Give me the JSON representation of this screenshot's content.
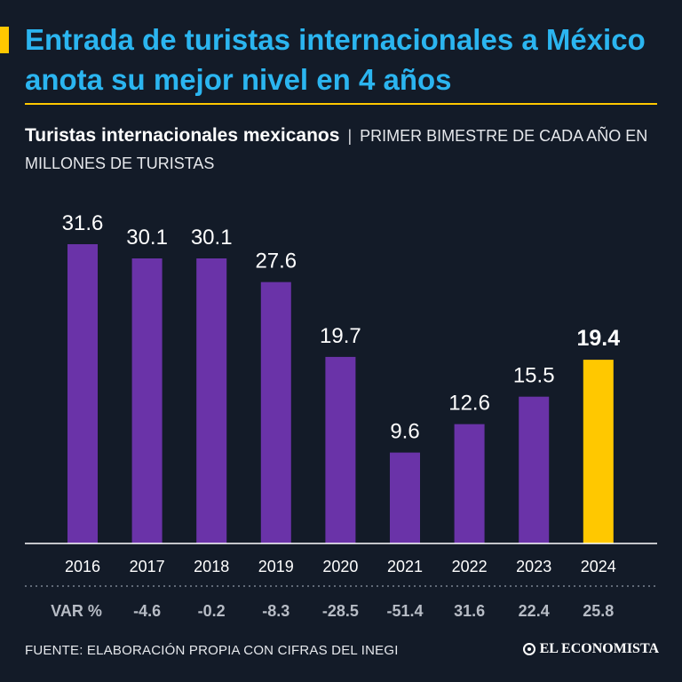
{
  "header": {
    "headline": "Entrada de turistas internacionales a México anota su mejor nivel en 4 años",
    "subtitle_strong": "Turistas internacionales mexicanos",
    "subtitle_separator": "|",
    "subtitle_rest": "PRIMER BIMESTRE DE CADA AÑO EN MILLONES DE TURISTAS"
  },
  "chart_data": {
    "type": "bar",
    "title": "Turistas internacionales mexicanos",
    "ylabel": "Millones de turistas",
    "categories": [
      "2016",
      "2017",
      "2018",
      "2019",
      "2020",
      "2021",
      "2022",
      "2023",
      "2024"
    ],
    "values": [
      31.6,
      30.1,
      30.1,
      27.6,
      19.7,
      9.6,
      12.6,
      15.5,
      19.4
    ],
    "value_labels": [
      "31.6",
      "30.1",
      "30.1",
      "27.6",
      "19.7",
      "9.6",
      "12.6",
      "15.5",
      "19.4"
    ],
    "ylim": [
      0,
      31.6
    ],
    "highlight_index": 8,
    "variation_label": "VAR %",
    "variation": [
      "-4.6",
      "-0.2",
      "-8.3",
      "-28.5",
      "-51.4",
      "31.6",
      "22.4",
      "25.8"
    ],
    "colors": {
      "bar": "#6a33a8",
      "highlight": "#ffc800",
      "axis": "#ffffff"
    }
  },
  "footer": {
    "source": "FUENTE: ELABORACIÓN PROPIA CON CIFRAS DEL INEGI",
    "logo": "EL ECONOMISTA"
  }
}
